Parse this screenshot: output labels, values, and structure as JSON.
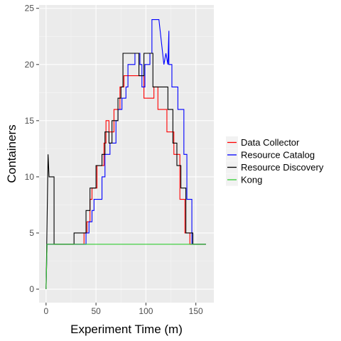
{
  "chart_data": {
    "type": "line",
    "title": "",
    "xlabel": "Experiment Time (m)",
    "ylabel": "Containers",
    "xlim": [
      -7,
      168
    ],
    "ylim": [
      -1.2,
      25.3
    ],
    "x_ticks": [
      0,
      50,
      100,
      150
    ],
    "y_ticks": [
      0,
      5,
      10,
      15,
      20,
      25
    ],
    "grid": true,
    "legend_position": "right",
    "series": [
      {
        "name": "Data Collector",
        "color": "#ff0000",
        "x": [
          0,
          1,
          28,
          28,
          38,
          38,
          41,
          41,
          44,
          44,
          46,
          46,
          51,
          51,
          58,
          58,
          60,
          60,
          63,
          63,
          68,
          68,
          74,
          74,
          78,
          78,
          80,
          80,
          98,
          98,
          104,
          104,
          108,
          108,
          112,
          112,
          121,
          121,
          128,
          128,
          134,
          134,
          139,
          139,
          144,
          144,
          160
        ],
        "y": [
          0,
          4,
          4,
          4,
          4,
          5,
          5,
          6,
          6,
          8,
          8,
          9,
          9,
          11,
          11,
          13,
          13,
          15,
          15,
          14,
          14,
          16,
          16,
          18,
          18,
          19,
          19,
          19,
          19,
          17,
          17,
          17,
          17,
          18,
          18,
          16,
          16,
          14,
          14,
          12,
          12,
          8,
          8,
          5,
          5,
          4,
          4
        ]
      },
      {
        "name": "Resource Catalog",
        "color": "#0000ff",
        "x": [
          0,
          1,
          34,
          34,
          40,
          40,
          43,
          43,
          46,
          46,
          48,
          48,
          56,
          56,
          59,
          59,
          64,
          64,
          70,
          70,
          72,
          72,
          76,
          76,
          80,
          80,
          82,
          82,
          89,
          89,
          94,
          94,
          96,
          96,
          99,
          99,
          104,
          104,
          106,
          106,
          113,
          113,
          118,
          120,
          122,
          123,
          123,
          126,
          126,
          132,
          132,
          138,
          138,
          141,
          141,
          146,
          146,
          160
        ],
        "y": [
          0,
          4,
          4,
          4,
          4,
          5,
          5,
          6,
          6,
          7,
          7,
          8,
          8,
          10,
          10,
          12,
          12,
          13,
          13,
          15,
          15,
          16,
          16,
          17,
          17,
          18,
          18,
          20,
          20,
          21,
          21,
          20,
          20,
          18,
          18,
          20,
          20,
          21,
          21,
          24,
          24,
          24,
          20,
          21,
          20,
          23,
          20,
          20,
          18,
          18,
          16,
          16,
          12,
          12,
          8,
          8,
          4,
          4
        ]
      },
      {
        "name": "Resource Discovery",
        "color": "#000000",
        "x": [
          0,
          2,
          2,
          3,
          3,
          8,
          8,
          28,
          28,
          40,
          40,
          44,
          44,
          50,
          50,
          56,
          56,
          59,
          59,
          63,
          63,
          66,
          66,
          72,
          72,
          75,
          75,
          77,
          77,
          80,
          80,
          93,
          93,
          98,
          98,
          102,
          102,
          107,
          107,
          110,
          110,
          122,
          122,
          127,
          127,
          131,
          131,
          135,
          135,
          140,
          140,
          147,
          147,
          160
        ],
        "y": [
          0,
          12,
          12,
          10,
          10,
          10,
          4,
          4,
          5,
          5,
          7,
          7,
          9,
          9,
          11,
          11,
          12,
          12,
          14,
          14,
          13,
          13,
          15,
          15,
          17,
          17,
          18,
          18,
          21,
          21,
          21,
          21,
          19,
          19,
          21,
          21,
          21,
          21,
          18,
          18,
          18,
          18,
          16,
          16,
          13,
          13,
          11,
          11,
          9,
          9,
          5,
          5,
          4,
          4
        ]
      },
      {
        "name": "Kong",
        "color": "#33cc33",
        "x": [
          0,
          1,
          160
        ],
        "y": [
          0,
          4,
          4
        ]
      }
    ]
  }
}
